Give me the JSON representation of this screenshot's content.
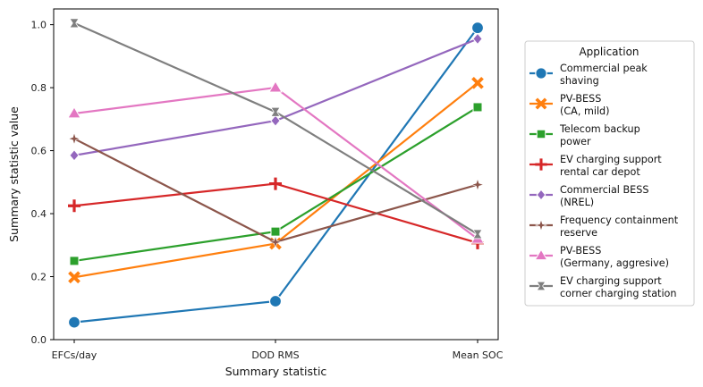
{
  "chart_data": {
    "type": "line",
    "categories": [
      "EFCs/day",
      "DOD RMS",
      "Mean SOC"
    ],
    "xlabel": "Summary statistic",
    "ylabel": "Summary statistic value",
    "ylim": [
      0.0,
      1.05
    ],
    "yticks": [
      "0.0",
      "0.2",
      "0.4",
      "0.6",
      "0.8",
      "1.0"
    ],
    "grid": false,
    "legend_title": "Application",
    "legend_position": "right",
    "series": [
      {
        "name": "Commercial peak shaving",
        "label_lines": [
          "Commercial peak",
          "shaving"
        ],
        "color": "#1f77b4",
        "marker": "circle",
        "values": [
          0.055,
          0.122,
          0.99
        ]
      },
      {
        "name": "PV-BESS (CA, mild)",
        "label_lines": [
          "PV-BESS",
          "(CA, mild)"
        ],
        "color": "#ff7f0e",
        "marker": "x",
        "values": [
          0.198,
          0.305,
          0.815
        ]
      },
      {
        "name": "Telecom backup power",
        "label_lines": [
          "Telecom backup",
          "power"
        ],
        "color": "#2ca02c",
        "marker": "square",
        "values": [
          0.25,
          0.343,
          0.738
        ]
      },
      {
        "name": "EV charging support rental car depot",
        "label_lines": [
          "EV charging support",
          "rental car depot"
        ],
        "color": "#d62728",
        "marker": "plus",
        "values": [
          0.425,
          0.495,
          0.307
        ]
      },
      {
        "name": "Commercial BESS (NREL)",
        "label_lines": [
          "Commercial BESS",
          "(NREL)"
        ],
        "color": "#9467bd",
        "marker": "diamond",
        "values": [
          0.585,
          0.695,
          0.955
        ]
      },
      {
        "name": "Frequency containment reserve",
        "label_lines": [
          "Frequency containment",
          "reserve"
        ],
        "color": "#8c564b",
        "marker": "star",
        "values": [
          0.638,
          0.31,
          0.492
        ]
      },
      {
        "name": "PV-BESS (Germany, aggresive)",
        "label_lines": [
          "PV-BESS",
          "(Germany, aggresive)"
        ],
        "color": "#e377c2",
        "marker": "triangle",
        "values": [
          0.718,
          0.8,
          0.32
        ]
      },
      {
        "name": "EV charging support corner charging station",
        "label_lines": [
          "EV charging support",
          "corner charging station"
        ],
        "color": "#7f7f7f",
        "marker": "hourglass",
        "values": [
          1.005,
          0.723,
          0.335
        ]
      }
    ]
  }
}
